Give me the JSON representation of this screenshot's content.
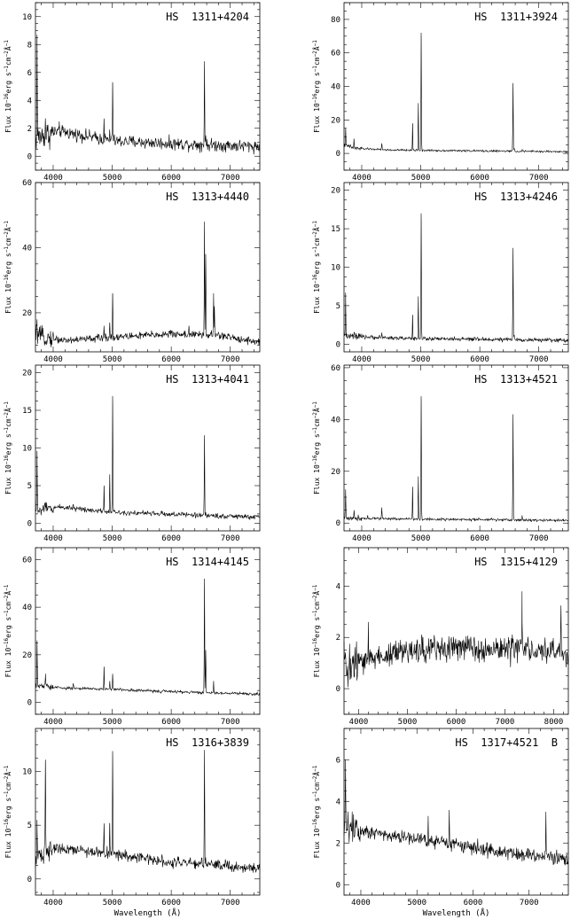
{
  "figure": {
    "xlabel": "Wavelength (Å)",
    "ylabel_main": "Flux 10",
    "ylabel_exp1": "−16",
    "ylabel_mid": "erg s",
    "ylabel_exp2": "−1",
    "ylabel_mid2": "cm",
    "ylabel_exp3": "−2",
    "ylabel_mid3": "Å",
    "ylabel_exp4": "−1"
  },
  "chart_data": [
    {
      "type": "line",
      "title": "HS 1311+4204",
      "xlim": [
        3700,
        7500
      ],
      "ylim": [
        -1,
        11
      ],
      "xticks": [
        4000,
        5000,
        6000,
        7000
      ],
      "yticks": [
        0,
        2,
        4,
        6,
        8,
        10
      ],
      "continuum": [
        [
          3700,
          1.3
        ],
        [
          4100,
          1.8
        ],
        [
          5000,
          1.1
        ],
        [
          6000,
          0.9
        ],
        [
          7500,
          0.7
        ]
      ],
      "noise": 0.45,
      "lines": [
        [
          3727,
          8.7
        ],
        [
          3869,
          2.5
        ],
        [
          4101,
          2.0
        ],
        [
          4340,
          1.5
        ],
        [
          4861,
          2.7
        ],
        [
          4959,
          1.8
        ],
        [
          5007,
          5.3
        ],
        [
          6563,
          6.8
        ],
        [
          6584,
          1.5
        ]
      ]
    },
    {
      "type": "line",
      "title": "HS 1311+3924",
      "xlim": [
        3700,
        7500
      ],
      "ylim": [
        -10,
        90
      ],
      "xticks": [
        4000,
        5000,
        6000,
        7000
      ],
      "yticks": [
        0,
        20,
        40,
        60,
        80
      ],
      "continuum": [
        [
          3700,
          5
        ],
        [
          3900,
          3
        ],
        [
          4500,
          2
        ],
        [
          6000,
          1.5
        ],
        [
          7500,
          1
        ]
      ],
      "noise": 0.6,
      "lines": [
        [
          3727,
          15
        ],
        [
          3869,
          8
        ],
        [
          4340,
          6
        ],
        [
          4861,
          18
        ],
        [
          4959,
          30
        ],
        [
          5007,
          72
        ],
        [
          6563,
          42
        ],
        [
          6584,
          3
        ],
        [
          6717,
          2
        ]
      ]
    },
    {
      "type": "line",
      "title": "HS 1313+4440",
      "xlim": [
        3700,
        7500
      ],
      "ylim": [
        8,
        60
      ],
      "xticks": [
        4000,
        5000,
        6000,
        7000
      ],
      "yticks": [
        20,
        40,
        60
      ],
      "continuum": [
        [
          3700,
          13
        ],
        [
          4200,
          11.5
        ],
        [
          5000,
          12.5
        ],
        [
          6000,
          13.5
        ],
        [
          6800,
          13
        ],
        [
          7500,
          11
        ]
      ],
      "noise": 1.2,
      "lines": [
        [
          3727,
          18
        ],
        [
          4861,
          16
        ],
        [
          4959,
          17
        ],
        [
          5007,
          26
        ],
        [
          6300,
          16
        ],
        [
          6563,
          48
        ],
        [
          6584,
          38
        ],
        [
          6717,
          26
        ],
        [
          6731,
          22
        ]
      ]
    },
    {
      "type": "line",
      "title": "HS 1313+4246",
      "xlim": [
        3700,
        7500
      ],
      "ylim": [
        -1,
        21
      ],
      "xticks": [
        4000,
        5000,
        6000,
        7000
      ],
      "yticks": [
        0,
        5,
        10,
        15,
        20
      ],
      "continuum": [
        [
          3700,
          1
        ],
        [
          5000,
          0.7
        ],
        [
          7500,
          0.5
        ]
      ],
      "noise": 0.25,
      "lines": [
        [
          3727,
          6.7
        ],
        [
          3869,
          1.5
        ],
        [
          4340,
          1.5
        ],
        [
          4861,
          3.8
        ],
        [
          4959,
          6.2
        ],
        [
          5007,
          17
        ],
        [
          6563,
          12.5
        ],
        [
          6584,
          1.2
        ]
      ]
    },
    {
      "type": "line",
      "title": "HS 1313+4041",
      "xlim": [
        3700,
        7500
      ],
      "ylim": [
        -1,
        21
      ],
      "xticks": [
        4000,
        5000,
        6000,
        7000
      ],
      "yticks": [
        0,
        5,
        10,
        15,
        20
      ],
      "continuum": [
        [
          3700,
          1.6
        ],
        [
          4100,
          2.2
        ],
        [
          5000,
          1.5
        ],
        [
          6000,
          1.2
        ],
        [
          7500,
          0.8
        ]
      ],
      "noise": 0.35,
      "lines": [
        [
          3727,
          9.6
        ],
        [
          3869,
          2.8
        ],
        [
          4101,
          2.2
        ],
        [
          4340,
          2.5
        ],
        [
          4861,
          5.0
        ],
        [
          4959,
          6.5
        ],
        [
          5007,
          16.9
        ],
        [
          6563,
          11.7
        ],
        [
          6584,
          1.5
        ]
      ]
    },
    {
      "type": "line",
      "title": "HS 1313+4521",
      "xlim": [
        3700,
        7500
      ],
      "ylim": [
        -3,
        61
      ],
      "xticks": [
        4000,
        5000,
        6000,
        7000
      ],
      "yticks": [
        0,
        20,
        40,
        60
      ],
      "continuum": [
        [
          3700,
          2
        ],
        [
          5000,
          1.5
        ],
        [
          7500,
          1
        ]
      ],
      "noise": 0.5,
      "lines": [
        [
          3727,
          13
        ],
        [
          3869,
          5
        ],
        [
          4101,
          3
        ],
        [
          4340,
          6
        ],
        [
          4861,
          14
        ],
        [
          4959,
          18
        ],
        [
          5007,
          49
        ],
        [
          6563,
          42
        ],
        [
          6717,
          3
        ]
      ]
    },
    {
      "type": "line",
      "title": "HS 1314+4145",
      "xlim": [
        3700,
        7500
      ],
      "ylim": [
        -5,
        65
      ],
      "xticks": [
        4000,
        5000,
        6000,
        7000
      ],
      "yticks": [
        0,
        20,
        40,
        60
      ],
      "continuum": [
        [
          3700,
          7
        ],
        [
          4200,
          6
        ],
        [
          5000,
          5.5
        ],
        [
          6000,
          4.5
        ],
        [
          7500,
          3.5
        ]
      ],
      "noise": 0.6,
      "lines": [
        [
          3727,
          26
        ],
        [
          3869,
          12
        ],
        [
          4340,
          8
        ],
        [
          4861,
          15
        ],
        [
          4959,
          9
        ],
        [
          5007,
          12
        ],
        [
          6563,
          52
        ],
        [
          6584,
          22
        ],
        [
          6717,
          9
        ]
      ]
    },
    {
      "type": "line",
      "title": "HS 1315+4129",
      "xlim": [
        3700,
        8300
      ],
      "ylim": [
        -1,
        5.5
      ],
      "xticks": [
        4000,
        5000,
        6000,
        7000,
        8000
      ],
      "yticks": [
        0,
        2,
        4
      ],
      "continuum": [
        [
          3700,
          0.8
        ],
        [
          4500,
          1.3
        ],
        [
          5500,
          1.6
        ],
        [
          6500,
          1.6
        ],
        [
          7500,
          1.5
        ],
        [
          8300,
          1.4
        ]
      ],
      "noise": 0.5,
      "lines": [
        [
          4200,
          2.6
        ],
        [
          7350,
          3.8
        ],
        [
          8150,
          3.0
        ]
      ]
    },
    {
      "type": "line",
      "title": "HS 1316+3839",
      "xlim": [
        3700,
        7500
      ],
      "ylim": [
        -1.5,
        14
      ],
      "xticks": [
        4000,
        5000,
        6000,
        7000
      ],
      "yticks": [
        0,
        5,
        10
      ],
      "continuum": [
        [
          3700,
          2
        ],
        [
          4000,
          3
        ],
        [
          5000,
          2.3
        ],
        [
          6000,
          1.6
        ],
        [
          7500,
          1
        ]
      ],
      "noise": 0.5,
      "lines": [
        [
          3727,
          5.5
        ],
        [
          3869,
          11.1
        ],
        [
          4861,
          5
        ],
        [
          4959,
          5.2
        ],
        [
          5007,
          11.9
        ],
        [
          6563,
          12
        ],
        [
          6584,
          2
        ]
      ]
    },
    {
      "type": "line",
      "title": "HS 1317+4521 B",
      "xlim": [
        3700,
        7700
      ],
      "ylim": [
        -0.5,
        7.5
      ],
      "xticks": [
        4000,
        5000,
        6000,
        7000
      ],
      "yticks": [
        0,
        2,
        4,
        6
      ],
      "continuum": [
        [
          3700,
          2.8
        ],
        [
          4500,
          2.4
        ],
        [
          5500,
          2
        ],
        [
          6500,
          1.6
        ],
        [
          7700,
          1.2
        ]
      ],
      "noise": 0.35,
      "lines": [
        [
          3727,
          6
        ],
        [
          5200,
          3.3
        ],
        [
          5577,
          3.5
        ],
        [
          7300,
          3.5
        ]
      ]
    }
  ]
}
